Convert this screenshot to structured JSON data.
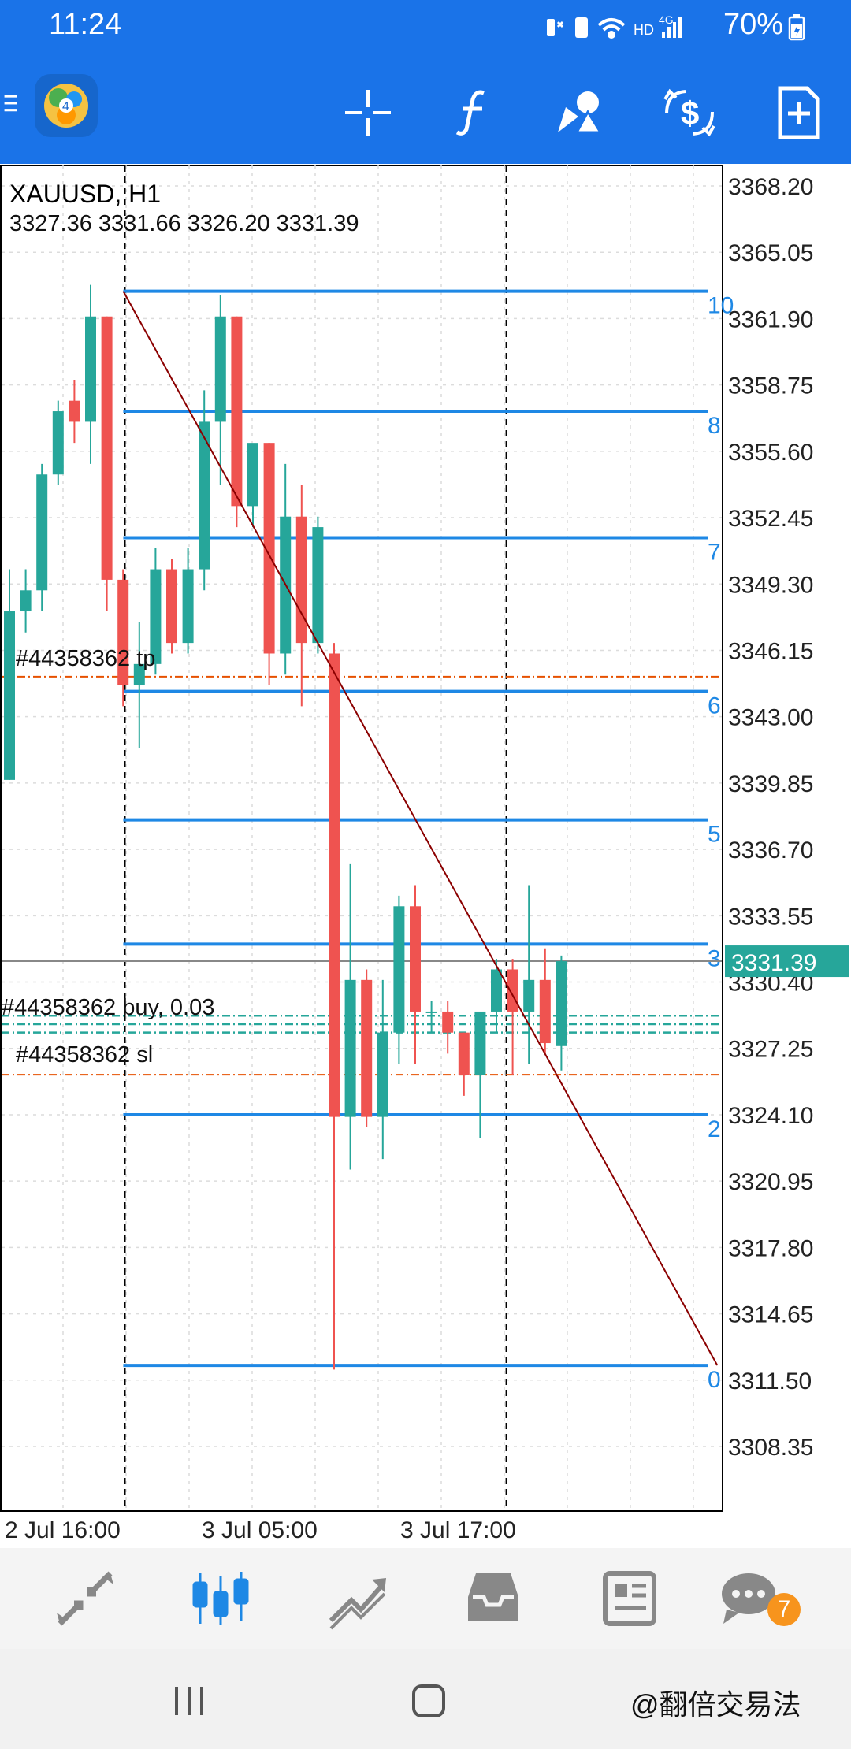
{
  "status_bar": {
    "time": "11:24",
    "icons": [
      "mute-vibrate-icon",
      "storage-icon",
      "wifi-icon",
      "hd-icon",
      "4g-signal-icon"
    ],
    "hd_label": "HD",
    "network_label": "4G",
    "battery": "70%"
  },
  "toolbar": {
    "buttons": [
      {
        "name": "menu",
        "icon": "hamburger-icon"
      },
      {
        "name": "app-logo",
        "icon": "metatrader-logo-icon"
      },
      {
        "name": "crosshair",
        "icon": "crosshair-icon"
      },
      {
        "name": "indicators",
        "icon": "function-f-icon"
      },
      {
        "name": "objects",
        "icon": "shapes-icon"
      },
      {
        "name": "trade",
        "icon": "dollar-exchange-icon"
      },
      {
        "name": "new-order",
        "icon": "new-document-icon"
      }
    ]
  },
  "chart": {
    "symbol_timeframe": "XAUUSD, H1",
    "ohlc": "3327.36 3331.66 3326.20 3331.39",
    "current_price": "3331.39",
    "colors": {
      "bull": "#26a69a",
      "bear": "#ef5350",
      "fib": "#1e88e5",
      "trend": "#8b0000",
      "order": "#e65100",
      "price_line": "#888888"
    },
    "order_labels": {
      "tp": "#44358362 tp",
      "buy": "#44358362 buy, 0.03",
      "sl": "#44358362 sl"
    },
    "fib_levels": [
      "0",
      "2",
      "3",
      "5",
      "6",
      "7",
      "8",
      "10"
    ]
  },
  "chart_data": {
    "type": "candlestick",
    "ylim": [
      3308.35,
      3368.2
    ],
    "price_ticks": [
      "3368.20",
      "3365.05",
      "3361.90",
      "3358.75",
      "3355.60",
      "3352.45",
      "3349.30",
      "3346.15",
      "3343.00",
      "3339.85",
      "3336.70",
      "3333.55",
      "3330.40",
      "3327.25",
      "3324.10",
      "3320.95",
      "3317.80",
      "3314.65",
      "3311.50",
      "3308.35"
    ],
    "time_labels": [
      "2 Jul 16:00",
      "3 Jul 05:00",
      "3 Jul 17:00"
    ],
    "candles": [
      {
        "o": 3340.0,
        "h": 3350.0,
        "l": 3340.0,
        "c": 3348.0
      },
      {
        "o": 3348.0,
        "h": 3350.0,
        "l": 3347.0,
        "c": 3349.0
      },
      {
        "o": 3349.0,
        "h": 3355.0,
        "l": 3348.0,
        "c": 3354.5
      },
      {
        "o": 3354.5,
        "h": 3358.0,
        "l": 3354.0,
        "c": 3357.5
      },
      {
        "o": 3358.0,
        "h": 3359.0,
        "l": 3356.0,
        "c": 3357.0
      },
      {
        "o": 3357.0,
        "h": 3363.5,
        "l": 3355.0,
        "c": 3362.0
      },
      {
        "o": 3362.0,
        "h": 3362.0,
        "l": 3348.0,
        "c": 3349.5
      },
      {
        "o": 3349.5,
        "h": 3350.0,
        "l": 3343.5,
        "c": 3344.5
      },
      {
        "o": 3344.5,
        "h": 3347.5,
        "l": 3341.5,
        "c": 3345.5
      },
      {
        "o": 3345.5,
        "h": 3351.0,
        "l": 3345.0,
        "c": 3350.0
      },
      {
        "o": 3350.0,
        "h": 3350.5,
        "l": 3346.0,
        "c": 3346.5
      },
      {
        "o": 3346.5,
        "h": 3351.0,
        "l": 3346.0,
        "c": 3350.0
      },
      {
        "o": 3350.0,
        "h": 3358.5,
        "l": 3349.0,
        "c": 3357.0
      },
      {
        "o": 3357.0,
        "h": 3363.0,
        "l": 3354.0,
        "c": 3362.0
      },
      {
        "o": 3362.0,
        "h": 3362.0,
        "l": 3352.0,
        "c": 3353.0
      },
      {
        "o": 3353.0,
        "h": 3355.5,
        "l": 3352.0,
        "c": 3356.0
      },
      {
        "o": 3356.0,
        "h": 3356.0,
        "l": 3344.5,
        "c": 3346.0
      },
      {
        "o": 3346.0,
        "h": 3355.0,
        "l": 3345.0,
        "c": 3352.5
      },
      {
        "o": 3352.5,
        "h": 3354.0,
        "l": 3343.5,
        "c": 3346.5
      },
      {
        "o": 3346.5,
        "h": 3352.5,
        "l": 3346.0,
        "c": 3352.0
      },
      {
        "o": 3346.0,
        "h": 3346.5,
        "l": 3312.0,
        "c": 3324.0
      },
      {
        "o": 3324.0,
        "h": 3336.0,
        "l": 3321.5,
        "c": 3330.5
      },
      {
        "o": 3330.5,
        "h": 3331.0,
        "l": 3323.5,
        "c": 3324.0
      },
      {
        "o": 3324.0,
        "h": 3330.5,
        "l": 3322.0,
        "c": 3328.0
      },
      {
        "o": 3328.0,
        "h": 3334.5,
        "l": 3326.5,
        "c": 3334.0
      },
      {
        "o": 3334.0,
        "h": 3335.0,
        "l": 3326.5,
        "c": 3329.0
      },
      {
        "o": 3329.0,
        "h": 3329.5,
        "l": 3328.0,
        "c": 3329.0
      },
      {
        "o": 3329.0,
        "h": 3329.5,
        "l": 3327.0,
        "c": 3328.0
      },
      {
        "o": 3328.0,
        "h": 3328.0,
        "l": 3325.0,
        "c": 3326.0
      },
      {
        "o": 3326.0,
        "h": 3329.0,
        "l": 3323.0,
        "c": 3329.0
      },
      {
        "o": 3329.0,
        "h": 3331.5,
        "l": 3328.0,
        "c": 3331.0
      },
      {
        "o": 3331.0,
        "h": 3331.5,
        "l": 3326.0,
        "c": 3329.0
      },
      {
        "o": 3329.0,
        "h": 3335.0,
        "l": 3326.5,
        "c": 3330.5
      },
      {
        "o": 3330.5,
        "h": 3332.0,
        "l": 3327.0,
        "c": 3327.5
      },
      {
        "o": 3327.36,
        "h": 3331.66,
        "l": 3326.2,
        "c": 3331.39
      }
    ],
    "fib_lines": [
      {
        "label": "10",
        "price": 3363.2
      },
      {
        "label": "8",
        "price": 3357.5
      },
      {
        "label": "7",
        "price": 3351.5
      },
      {
        "label": "6",
        "price": 3344.2
      },
      {
        "label": "5",
        "price": 3338.1
      },
      {
        "label": "3",
        "price": 3332.2
      },
      {
        "label": "2",
        "price": 3324.1
      },
      {
        "label": "0",
        "price": 3312.2
      }
    ],
    "trend_line": {
      "from": {
        "index": 7.4,
        "price": 3363.2
      },
      "to": {
        "index": 44,
        "price": 3312.2
      }
    },
    "tp_price": 3344.9,
    "sl_price": 3326.0,
    "buy_prices": [
      3328.8,
      3328.4,
      3328.0
    ],
    "vline_indices": [
      7.5,
      31.0
    ]
  },
  "bottom_nav": {
    "items": [
      {
        "name": "quotes",
        "icon": "quotes-arrows-icon"
      },
      {
        "name": "chart",
        "icon": "candles-icon",
        "active": true
      },
      {
        "name": "trade",
        "icon": "trade-chart-icon"
      },
      {
        "name": "history",
        "icon": "inbox-icon"
      },
      {
        "name": "news",
        "icon": "newspaper-icon"
      },
      {
        "name": "messages",
        "icon": "chat-bubble-icon",
        "badge": "7"
      }
    ],
    "active_color": "#1e88e5",
    "inactive_color": "#888888"
  },
  "system_nav": {
    "watermark": "@翻倍交易法"
  }
}
